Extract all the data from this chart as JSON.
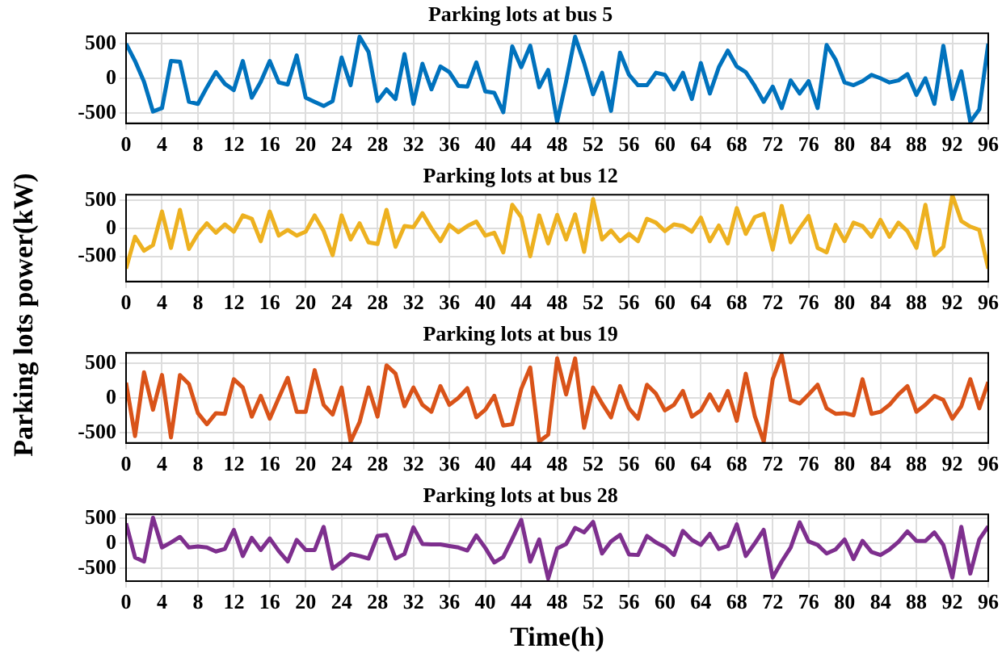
{
  "chart_data": [
    {
      "type": "line",
      "title": "Parking lots at bus 5",
      "ylabel": "Parking lots power(kW)",
      "marker": "none",
      "grid": true,
      "color": "#0072bd",
      "x": [
        0,
        1,
        2,
        3,
        4,
        5,
        6,
        7,
        8,
        9,
        10,
        11,
        12,
        13,
        14,
        15,
        16,
        17,
        18,
        19,
        20,
        21,
        22,
        23,
        24,
        25,
        26,
        27,
        28,
        29,
        30,
        31,
        32,
        33,
        34,
        35,
        36,
        37,
        38,
        39,
        40,
        41,
        42,
        43,
        44,
        45,
        46,
        47,
        48,
        49,
        50,
        51,
        52,
        53,
        54,
        55,
        56,
        57,
        58,
        59,
        60,
        61,
        62,
        63,
        64,
        65,
        66,
        67,
        68,
        69,
        70,
        71,
        72,
        73,
        74,
        75,
        76,
        77,
        78,
        79,
        80,
        81,
        82,
        83,
        84,
        85,
        86,
        87,
        88,
        89,
        90,
        91,
        92,
        93,
        94,
        95,
        96
      ],
      "values": [
        500,
        250,
        -50,
        -480,
        -430,
        250,
        240,
        -340,
        -370,
        -130,
        90,
        -80,
        -170,
        250,
        -280,
        -50,
        250,
        -60,
        -90,
        330,
        -280,
        -340,
        -400,
        -330,
        300,
        -100,
        600,
        380,
        -330,
        -160,
        -300,
        350,
        -370,
        210,
        -160,
        170,
        90,
        -110,
        -120,
        230,
        -190,
        -210,
        -490,
        460,
        160,
        470,
        -130,
        120,
        -630,
        -40,
        600,
        220,
        -230,
        80,
        -470,
        370,
        50,
        -100,
        -100,
        80,
        50,
        -160,
        80,
        -300,
        220,
        -220,
        160,
        400,
        170,
        90,
        -110,
        -340,
        -120,
        -430,
        -30,
        -220,
        -40,
        -430,
        480,
        270,
        -60,
        -100,
        -40,
        50,
        0,
        -60,
        -30,
        60,
        -240,
        0,
        -370,
        470,
        -300,
        100,
        -630,
        -450,
        500
      ],
      "xlim": [
        0,
        96
      ],
      "xticks": [
        0,
        4,
        8,
        12,
        16,
        20,
        24,
        28,
        32,
        36,
        40,
        44,
        48,
        52,
        56,
        60,
        64,
        68,
        72,
        76,
        80,
        84,
        88,
        92,
        96
      ],
      "ylim": [
        -650,
        650
      ],
      "yticks": [
        -500,
        0,
        500
      ]
    },
    {
      "type": "line",
      "title": "Parking lots at bus 12",
      "marker": "none",
      "grid": true,
      "color": "#edb120",
      "x": [
        0,
        1,
        2,
        3,
        4,
        5,
        6,
        7,
        8,
        9,
        10,
        11,
        12,
        13,
        14,
        15,
        16,
        17,
        18,
        19,
        20,
        21,
        22,
        23,
        24,
        25,
        26,
        27,
        28,
        29,
        30,
        31,
        32,
        33,
        34,
        35,
        36,
        37,
        38,
        39,
        40,
        41,
        42,
        43,
        44,
        45,
        46,
        47,
        48,
        49,
        50,
        51,
        52,
        53,
        54,
        55,
        56,
        57,
        58,
        59,
        60,
        61,
        62,
        63,
        64,
        65,
        66,
        67,
        68,
        69,
        70,
        71,
        72,
        73,
        74,
        75,
        76,
        77,
        78,
        79,
        80,
        81,
        82,
        83,
        84,
        85,
        86,
        87,
        88,
        89,
        90,
        91,
        92,
        93,
        94,
        95,
        96
      ],
      "values": [
        -720,
        -150,
        -400,
        -300,
        300,
        -350,
        330,
        -370,
        -100,
        90,
        -80,
        70,
        -60,
        230,
        170,
        -230,
        300,
        -130,
        -30,
        -130,
        -60,
        230,
        -50,
        -480,
        230,
        -200,
        90,
        -250,
        -280,
        330,
        -330,
        40,
        20,
        270,
        0,
        -230,
        60,
        -70,
        40,
        120,
        -130,
        -80,
        -430,
        420,
        200,
        -500,
        230,
        -270,
        240,
        -200,
        250,
        -420,
        520,
        -200,
        -40,
        -230,
        -100,
        -230,
        170,
        100,
        -50,
        70,
        40,
        -60,
        190,
        -230,
        50,
        -270,
        360,
        -100,
        200,
        260,
        -380,
        400,
        -250,
        0,
        220,
        -350,
        -430,
        60,
        -230,
        100,
        40,
        -150,
        150,
        -150,
        100,
        -50,
        -350,
        420,
        -480,
        -330,
        590,
        130,
        30,
        -30,
        -720
      ],
      "xlim": [
        0,
        96
      ],
      "xticks": [
        0,
        4,
        8,
        12,
        16,
        20,
        24,
        28,
        32,
        36,
        40,
        44,
        48,
        52,
        56,
        60,
        64,
        68,
        72,
        76,
        80,
        84,
        88,
        92,
        96
      ],
      "ylim": [
        -950,
        600
      ],
      "yticks": [
        -500,
        0,
        500
      ]
    },
    {
      "type": "line",
      "title": "Parking lots at bus 19",
      "marker": "none",
      "grid": true,
      "color": "#d95319",
      "x": [
        0,
        1,
        2,
        3,
        4,
        5,
        6,
        7,
        8,
        9,
        10,
        11,
        12,
        13,
        14,
        15,
        16,
        17,
        18,
        19,
        20,
        21,
        22,
        23,
        24,
        25,
        26,
        27,
        28,
        29,
        30,
        31,
        32,
        33,
        34,
        35,
        36,
        37,
        38,
        39,
        40,
        41,
        42,
        43,
        44,
        45,
        46,
        47,
        48,
        49,
        50,
        51,
        52,
        53,
        54,
        55,
        56,
        57,
        58,
        59,
        60,
        61,
        62,
        63,
        64,
        65,
        66,
        67,
        68,
        69,
        70,
        71,
        72,
        73,
        74,
        75,
        76,
        77,
        78,
        79,
        80,
        81,
        82,
        83,
        84,
        85,
        86,
        87,
        88,
        89,
        90,
        91,
        92,
        93,
        94,
        95,
        96
      ],
      "values": [
        220,
        -550,
        370,
        -170,
        330,
        -570,
        330,
        200,
        -220,
        -380,
        -220,
        -230,
        270,
        150,
        -270,
        30,
        -300,
        0,
        290,
        -200,
        -200,
        400,
        -100,
        -240,
        150,
        -630,
        -350,
        150,
        -270,
        470,
        350,
        -120,
        150,
        -100,
        -200,
        170,
        -100,
        0,
        140,
        -280,
        -170,
        30,
        -400,
        -380,
        130,
        440,
        -630,
        -530,
        570,
        50,
        570,
        -430,
        150,
        -80,
        -280,
        170,
        -150,
        -300,
        190,
        60,
        -180,
        -100,
        100,
        -270,
        -180,
        50,
        -180,
        100,
        -330,
        350,
        -260,
        -630,
        270,
        620,
        -30,
        -80,
        50,
        190,
        -150,
        -230,
        -220,
        -250,
        270,
        -230,
        -200,
        -100,
        50,
        170,
        -200,
        -100,
        30,
        -30,
        -300,
        -120,
        270,
        -150,
        230
      ],
      "xlim": [
        0,
        96
      ],
      "xticks": [
        0,
        4,
        8,
        12,
        16,
        20,
        24,
        28,
        32,
        36,
        40,
        44,
        48,
        52,
        56,
        60,
        64,
        68,
        72,
        76,
        80,
        84,
        88,
        92,
        96
      ],
      "ylim": [
        -650,
        650
      ],
      "yticks": [
        -500,
        0,
        500
      ]
    },
    {
      "type": "line",
      "title": "Parking lots at bus 28",
      "xlabel": "Time(h)",
      "marker": "none",
      "grid": true,
      "color": "#7e2f8e",
      "x": [
        0,
        1,
        2,
        3,
        4,
        5,
        6,
        7,
        8,
        9,
        10,
        11,
        12,
        13,
        14,
        15,
        16,
        17,
        18,
        19,
        20,
        21,
        22,
        23,
        24,
        25,
        26,
        27,
        28,
        29,
        30,
        31,
        32,
        33,
        34,
        35,
        36,
        37,
        38,
        39,
        40,
        41,
        42,
        43,
        44,
        45,
        46,
        47,
        48,
        49,
        50,
        51,
        52,
        53,
        54,
        55,
        56,
        57,
        58,
        59,
        60,
        61,
        62,
        63,
        64,
        65,
        66,
        67,
        68,
        69,
        70,
        71,
        72,
        73,
        74,
        75,
        76,
        77,
        78,
        79,
        80,
        81,
        82,
        83,
        84,
        85,
        86,
        87,
        88,
        89,
        90,
        91,
        92,
        93,
        94,
        95,
        96
      ],
      "values": [
        400,
        -280,
        -360,
        510,
        -80,
        20,
        130,
        -80,
        -60,
        -80,
        -160,
        -110,
        270,
        -250,
        110,
        -130,
        100,
        -150,
        -360,
        70,
        -130,
        -130,
        330,
        -500,
        -370,
        -210,
        -250,
        -300,
        150,
        170,
        -300,
        -210,
        320,
        -10,
        -20,
        -20,
        -50,
        -80,
        -140,
        160,
        -90,
        -380,
        -270,
        90,
        470,
        -360,
        80,
        -700,
        -100,
        -10,
        310,
        220,
        430,
        -200,
        40,
        170,
        -220,
        -230,
        150,
        20,
        -70,
        -230,
        250,
        70,
        -30,
        190,
        -110,
        -50,
        380,
        -250,
        0,
        270,
        -680,
        -360,
        -80,
        420,
        40,
        -30,
        -200,
        -120,
        80,
        -310,
        50,
        -170,
        -230,
        -120,
        30,
        240,
        50,
        50,
        220,
        -30,
        -680,
        330,
        -600,
        80,
        340
      ],
      "xlim": [
        0,
        96
      ],
      "xticks": [
        0,
        4,
        8,
        12,
        16,
        20,
        24,
        28,
        32,
        36,
        40,
        44,
        48,
        52,
        56,
        60,
        64,
        68,
        72,
        76,
        80,
        84,
        88,
        92,
        96
      ],
      "ylim": [
        -750,
        580
      ],
      "yticks": [
        -500,
        0,
        500
      ]
    }
  ]
}
